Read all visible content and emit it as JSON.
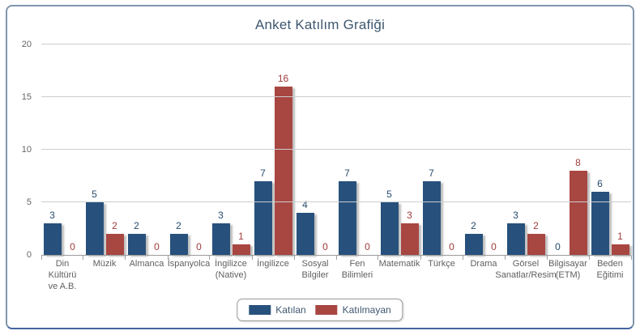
{
  "chart_data": {
    "type": "bar",
    "title": "Anket Katılım Grafiği",
    "xlabel": "",
    "ylabel": "",
    "ylim": [
      0,
      20
    ],
    "yticks": [
      0,
      5,
      10,
      15,
      20
    ],
    "grid": true,
    "legend_position": "bottom",
    "categories": [
      "Din Kültürü ve A.B.",
      "Müzik",
      "Almanca",
      "İspanyolca",
      "İngilizce (Native)",
      "İngilizce",
      "Sosyal Bilgiler",
      "Fen Bilimleri",
      "Matematik",
      "Türkçe",
      "Drama",
      "Görsel Sanatlar/Resim",
      "Bilgisayar (ETM)",
      "Beden Eğitimi"
    ],
    "category_label_lines": [
      [
        "Din",
        "Kültürü",
        "ve A.B."
      ],
      [
        "Müzik"
      ],
      [
        "Almanca"
      ],
      [
        "İspanyolca"
      ],
      [
        "İngilizce",
        "(Native)"
      ],
      [
        "İngilizce"
      ],
      [
        "Sosyal",
        "Bilgiler"
      ],
      [
        "Fen",
        "Bilimleri"
      ],
      [
        "Matematik"
      ],
      [
        "Türkçe"
      ],
      [
        "Drama"
      ],
      [
        "Görsel",
        "Sanatlar/Resim"
      ],
      [
        "Bilgisayar",
        "(ETM)"
      ],
      [
        "Beden",
        "Eğitimi"
      ]
    ],
    "series": [
      {
        "key": "katilan",
        "name": "Katılan",
        "color": "#27517c",
        "label_color": "#274b6d",
        "values": [
          3,
          5,
          2,
          2,
          3,
          7,
          4,
          7,
          5,
          7,
          2,
          3,
          0,
          6
        ]
      },
      {
        "key": "katilmayan",
        "name": "Katılmayan",
        "color": "#a84642",
        "label_color": "#9e3b3b",
        "values": [
          0,
          2,
          0,
          0,
          1,
          16,
          0,
          0,
          3,
          0,
          0,
          2,
          8,
          1
        ]
      }
    ]
  }
}
